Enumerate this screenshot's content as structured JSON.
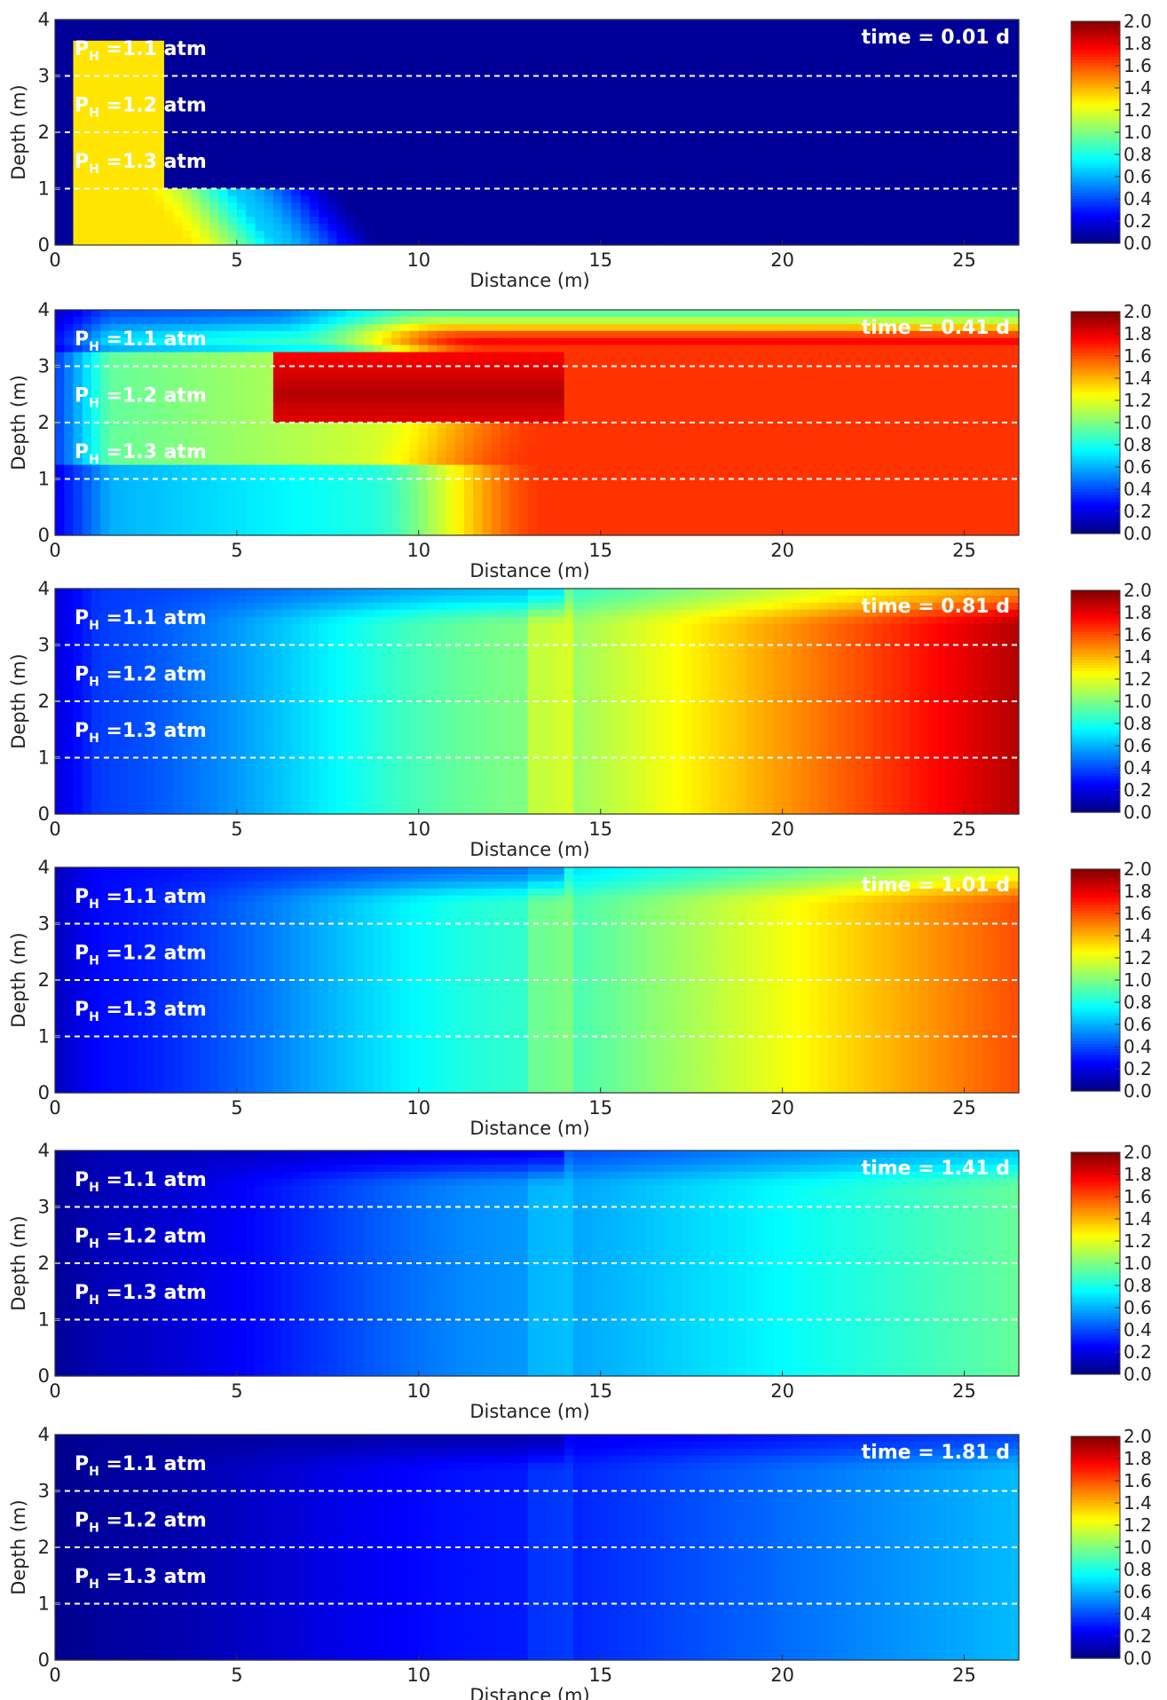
{
  "chart_data": [
    {
      "type": "heatmap",
      "time_label": "time = 0.01 d",
      "xlabel": "Distance (m)",
      "ylabel": "Depth (m)",
      "xlim": [
        0,
        26.5
      ],
      "ylim": [
        0,
        4
      ],
      "xticks": [
        "0",
        "5",
        "10",
        "15",
        "20",
        "25"
      ],
      "yticks": [
        "0",
        "1",
        "2",
        "3",
        "4"
      ],
      "annotations": [
        {
          "text": "P",
          "sub": "H",
          "rest": " =1.1 atm",
          "depth": 3.5
        },
        {
          "text": "P",
          "sub": "H",
          "rest": " =1.2 atm",
          "depth": 2.5
        },
        {
          "text": "P",
          "sub": "H",
          "rest": " =1.3 atm",
          "depth": 1.5
        }
      ],
      "dashed_lines_depth": [
        3,
        2,
        1
      ],
      "colorbar": {
        "min": 0.0,
        "max": 2.0,
        "ticks": [
          "0.0",
          "0.2",
          "0.4",
          "0.6",
          "0.8",
          "1.0",
          "1.2",
          "1.4",
          "1.6",
          "1.8",
          "2.0"
        ]
      },
      "field": {
        "kind": "initial",
        "base": 0.05,
        "peak": 1.3
      }
    },
    {
      "type": "heatmap",
      "time_label": "time = 0.41 d",
      "xlabel": "Distance (m)",
      "ylabel": "Depth (m)",
      "xlim": [
        0,
        26.5
      ],
      "ylim": [
        0,
        4
      ],
      "xticks": [
        "0",
        "5",
        "10",
        "15",
        "20",
        "25"
      ],
      "yticks": [
        "0",
        "1",
        "2",
        "3",
        "4"
      ],
      "annotations": [
        {
          "text": "P",
          "sub": "H",
          "rest": " =1.1 atm",
          "depth": 3.5
        },
        {
          "text": "P",
          "sub": "H",
          "rest": " =1.2 atm",
          "depth": 2.5
        },
        {
          "text": "P",
          "sub": "H",
          "rest": " =1.3 atm",
          "depth": 1.5
        }
      ],
      "dashed_lines_depth": [
        3,
        2,
        1
      ],
      "colorbar": {
        "min": 0.0,
        "max": 2.0,
        "ticks": [
          "0.0",
          "0.2",
          "0.4",
          "0.6",
          "0.8",
          "1.0",
          "1.2",
          "1.4",
          "1.6",
          "1.8",
          "2.0"
        ]
      },
      "field": {
        "kind": "spread",
        "left": 0.55,
        "right": 1.65,
        "front": 12.5,
        "blur": 2.5,
        "top": 0.5
      }
    },
    {
      "type": "heatmap",
      "time_label": "time = 0.81 d",
      "xlabel": "Distance (m)",
      "ylabel": "Depth (m)",
      "xlim": [
        0,
        26.5
      ],
      "ylim": [
        0,
        4
      ],
      "xticks": [
        "0",
        "5",
        "10",
        "15",
        "20",
        "25"
      ],
      "yticks": [
        "0",
        "1",
        "2",
        "3",
        "4"
      ],
      "annotations": [
        {
          "text": "P",
          "sub": "H",
          "rest": " =1.1 atm",
          "depth": 3.5
        },
        {
          "text": "P",
          "sub": "H",
          "rest": " =1.2 atm",
          "depth": 2.5
        },
        {
          "text": "P",
          "sub": "H",
          "rest": " =1.3 atm",
          "depth": 1.5
        }
      ],
      "dashed_lines_depth": [
        3,
        2,
        1
      ],
      "colorbar": {
        "min": 0.0,
        "max": 2.0,
        "ticks": [
          "0.0",
          "0.2",
          "0.4",
          "0.6",
          "0.8",
          "1.0",
          "1.2",
          "1.4",
          "1.6",
          "1.8",
          "2.0"
        ]
      },
      "field": {
        "kind": "grad",
        "left": 0.35,
        "mid": 1.0,
        "right": 1.9,
        "front": 13.5,
        "top": 0.55
      }
    },
    {
      "type": "heatmap",
      "time_label": "time = 1.01 d",
      "xlabel": "Distance (m)",
      "ylabel": "Depth (m)",
      "xlim": [
        0,
        26.5
      ],
      "ylim": [
        0,
        4
      ],
      "xticks": [
        "0",
        "5",
        "10",
        "15",
        "20",
        "25"
      ],
      "yticks": [
        "0",
        "1",
        "2",
        "3",
        "4"
      ],
      "annotations": [
        {
          "text": "P",
          "sub": "H",
          "rest": " =1.1 atm",
          "depth": 3.5
        },
        {
          "text": "P",
          "sub": "H",
          "rest": " =1.2 atm",
          "depth": 2.5
        },
        {
          "text": "P",
          "sub": "H",
          "rest": " =1.3 atm",
          "depth": 1.5
        }
      ],
      "dashed_lines_depth": [
        3,
        2,
        1
      ],
      "colorbar": {
        "min": 0.0,
        "max": 2.0,
        "ticks": [
          "0.0",
          "0.2",
          "0.4",
          "0.6",
          "0.8",
          "1.0",
          "1.2",
          "1.4",
          "1.6",
          "1.8",
          "2.0"
        ]
      },
      "field": {
        "kind": "grad",
        "left": 0.25,
        "mid": 0.85,
        "right": 1.6,
        "front": 13.5,
        "top": 0.6
      }
    },
    {
      "type": "heatmap",
      "time_label": "time = 1.41 d",
      "xlabel": "Distance (m)",
      "ylabel": "Depth (m)",
      "xlim": [
        0,
        26.5
      ],
      "ylim": [
        0,
        4
      ],
      "xticks": [
        "0",
        "5",
        "10",
        "15",
        "20",
        "25"
      ],
      "yticks": [
        "0",
        "1",
        "2",
        "3",
        "4"
      ],
      "annotations": [
        {
          "text": "P",
          "sub": "H",
          "rest": " =1.1 atm",
          "depth": 3.5
        },
        {
          "text": "P",
          "sub": "H",
          "rest": " =1.2 atm",
          "depth": 2.5
        },
        {
          "text": "P",
          "sub": "H",
          "rest": " =1.3 atm",
          "depth": 1.5
        }
      ],
      "dashed_lines_depth": [
        3,
        2,
        1
      ],
      "colorbar": {
        "min": 0.0,
        "max": 2.0,
        "ticks": [
          "0.0",
          "0.2",
          "0.4",
          "0.6",
          "0.8",
          "1.0",
          "1.2",
          "1.4",
          "1.6",
          "1.8",
          "2.0"
        ]
      },
      "field": {
        "kind": "grad",
        "left": 0.1,
        "mid": 0.55,
        "right": 0.95,
        "front": 13.5,
        "top": 0.7
      }
    },
    {
      "type": "heatmap",
      "time_label": "time = 1.81 d",
      "xlabel": "Distance (m)",
      "ylabel": "Depth (m)",
      "xlim": [
        0,
        26.5
      ],
      "ylim": [
        0,
        4
      ],
      "xticks": [
        "0",
        "5",
        "10",
        "15",
        "20",
        "25"
      ],
      "yticks": [
        "0",
        "1",
        "2",
        "3",
        "4"
      ],
      "annotations": [
        {
          "text": "P",
          "sub": "H",
          "rest": " =1.1 atm",
          "depth": 3.5
        },
        {
          "text": "P",
          "sub": "H",
          "rest": " =1.2 atm",
          "depth": 2.5
        },
        {
          "text": "P",
          "sub": "H",
          "rest": " =1.3 atm",
          "depth": 1.5
        }
      ],
      "dashed_lines_depth": [
        3,
        2,
        1
      ],
      "colorbar": {
        "min": 0.0,
        "max": 2.0,
        "ticks": [
          "0.0",
          "0.2",
          "0.4",
          "0.6",
          "0.8",
          "1.0",
          "1.2",
          "1.4",
          "1.6",
          "1.8",
          "2.0"
        ]
      },
      "field": {
        "kind": "grad",
        "left": 0.05,
        "mid": 0.3,
        "right": 0.62,
        "front": 13.5,
        "top": 0.8
      }
    }
  ]
}
